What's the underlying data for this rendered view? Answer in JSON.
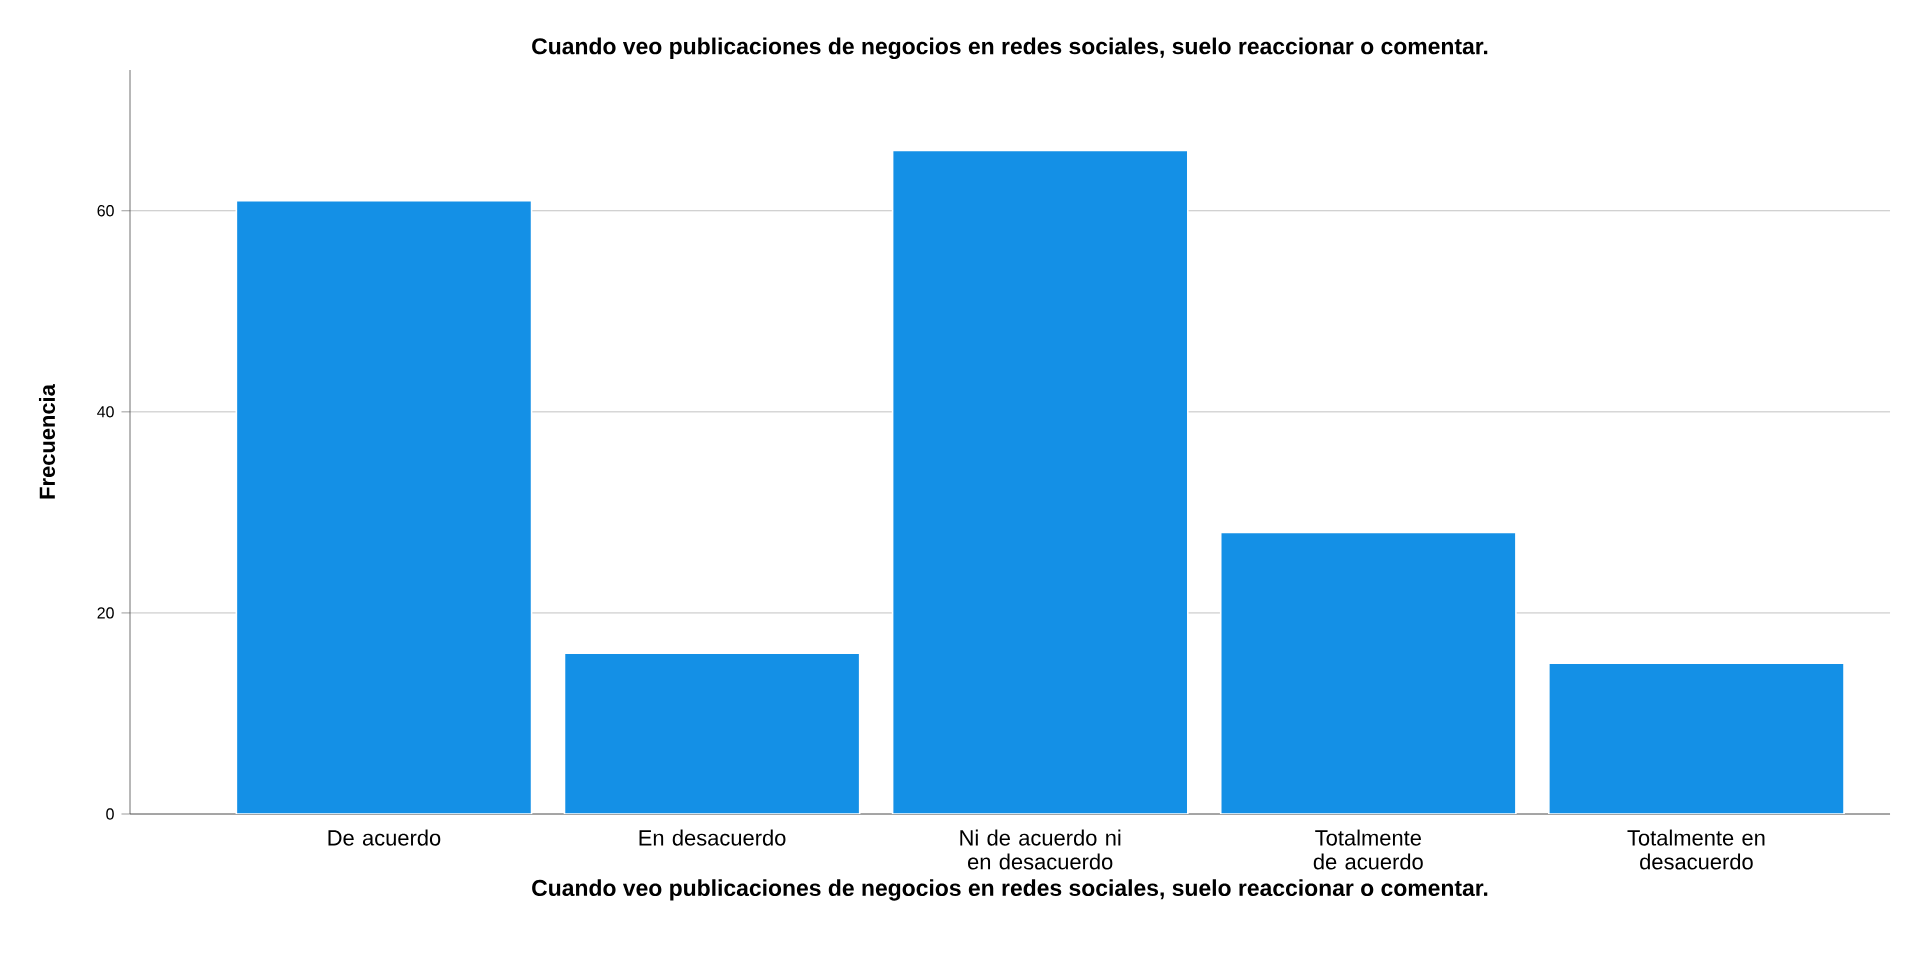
{
  "chart_data": {
    "type": "bar",
    "title": "Cuando veo publicaciones de negocios en redes sociales, suelo reaccionar o comentar.",
    "xlabel": "Cuando veo publicaciones de negocios en redes sociales, suelo reaccionar o comentar.",
    "ylabel": "Frecuencia",
    "categories": [
      "De acuerdo",
      "En desacuerdo",
      "Ni de acuerdo ni en desacuerdo",
      "Totalmente de acuerdo",
      "Totalmente en desacuerdo"
    ],
    "values": [
      61,
      16,
      66,
      28,
      15
    ],
    "color": "#1490e6",
    "ylim": [
      0,
      74
    ],
    "yticks": [
      0,
      20,
      40,
      60
    ],
    "grid": "y"
  }
}
